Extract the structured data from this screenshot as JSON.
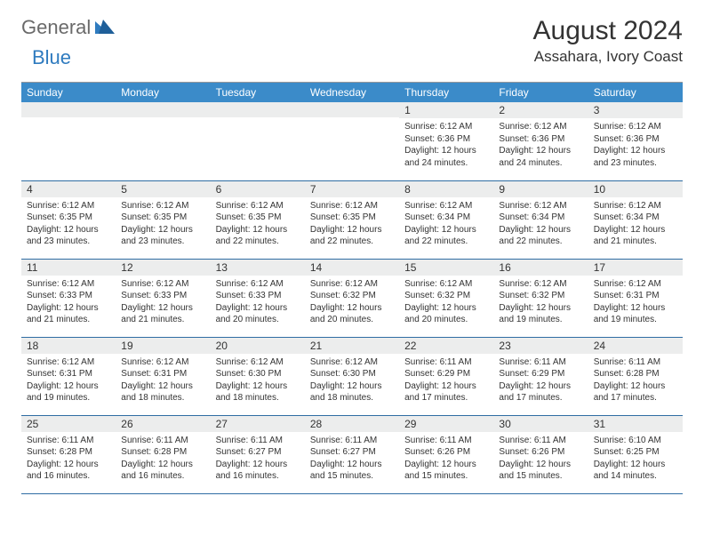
{
  "logo": {
    "text1": "General",
    "text2": "Blue"
  },
  "title": "August 2024",
  "location": "Assahara, Ivory Coast",
  "colors": {
    "header_bg": "#3b8bc9",
    "header_text": "#ffffff",
    "daynum_bg": "#eceded",
    "row_border": "#2f6da3",
    "logo_gray": "#6a6a6a",
    "logo_blue": "#2f7bbf"
  },
  "weekdays": [
    "Sunday",
    "Monday",
    "Tuesday",
    "Wednesday",
    "Thursday",
    "Friday",
    "Saturday"
  ],
  "weeks": [
    [
      {
        "day": "",
        "lines": [
          "",
          "",
          "",
          ""
        ]
      },
      {
        "day": "",
        "lines": [
          "",
          "",
          "",
          ""
        ]
      },
      {
        "day": "",
        "lines": [
          "",
          "",
          "",
          ""
        ]
      },
      {
        "day": "",
        "lines": [
          "",
          "",
          "",
          ""
        ]
      },
      {
        "day": "1",
        "lines": [
          "Sunrise: 6:12 AM",
          "Sunset: 6:36 PM",
          "Daylight: 12 hours",
          "and 24 minutes."
        ]
      },
      {
        "day": "2",
        "lines": [
          "Sunrise: 6:12 AM",
          "Sunset: 6:36 PM",
          "Daylight: 12 hours",
          "and 24 minutes."
        ]
      },
      {
        "day": "3",
        "lines": [
          "Sunrise: 6:12 AM",
          "Sunset: 6:36 PM",
          "Daylight: 12 hours",
          "and 23 minutes."
        ]
      }
    ],
    [
      {
        "day": "4",
        "lines": [
          "Sunrise: 6:12 AM",
          "Sunset: 6:35 PM",
          "Daylight: 12 hours",
          "and 23 minutes."
        ]
      },
      {
        "day": "5",
        "lines": [
          "Sunrise: 6:12 AM",
          "Sunset: 6:35 PM",
          "Daylight: 12 hours",
          "and 23 minutes."
        ]
      },
      {
        "day": "6",
        "lines": [
          "Sunrise: 6:12 AM",
          "Sunset: 6:35 PM",
          "Daylight: 12 hours",
          "and 22 minutes."
        ]
      },
      {
        "day": "7",
        "lines": [
          "Sunrise: 6:12 AM",
          "Sunset: 6:35 PM",
          "Daylight: 12 hours",
          "and 22 minutes."
        ]
      },
      {
        "day": "8",
        "lines": [
          "Sunrise: 6:12 AM",
          "Sunset: 6:34 PM",
          "Daylight: 12 hours",
          "and 22 minutes."
        ]
      },
      {
        "day": "9",
        "lines": [
          "Sunrise: 6:12 AM",
          "Sunset: 6:34 PM",
          "Daylight: 12 hours",
          "and 22 minutes."
        ]
      },
      {
        "day": "10",
        "lines": [
          "Sunrise: 6:12 AM",
          "Sunset: 6:34 PM",
          "Daylight: 12 hours",
          "and 21 minutes."
        ]
      }
    ],
    [
      {
        "day": "11",
        "lines": [
          "Sunrise: 6:12 AM",
          "Sunset: 6:33 PM",
          "Daylight: 12 hours",
          "and 21 minutes."
        ]
      },
      {
        "day": "12",
        "lines": [
          "Sunrise: 6:12 AM",
          "Sunset: 6:33 PM",
          "Daylight: 12 hours",
          "and 21 minutes."
        ]
      },
      {
        "day": "13",
        "lines": [
          "Sunrise: 6:12 AM",
          "Sunset: 6:33 PM",
          "Daylight: 12 hours",
          "and 20 minutes."
        ]
      },
      {
        "day": "14",
        "lines": [
          "Sunrise: 6:12 AM",
          "Sunset: 6:32 PM",
          "Daylight: 12 hours",
          "and 20 minutes."
        ]
      },
      {
        "day": "15",
        "lines": [
          "Sunrise: 6:12 AM",
          "Sunset: 6:32 PM",
          "Daylight: 12 hours",
          "and 20 minutes."
        ]
      },
      {
        "day": "16",
        "lines": [
          "Sunrise: 6:12 AM",
          "Sunset: 6:32 PM",
          "Daylight: 12 hours",
          "and 19 minutes."
        ]
      },
      {
        "day": "17",
        "lines": [
          "Sunrise: 6:12 AM",
          "Sunset: 6:31 PM",
          "Daylight: 12 hours",
          "and 19 minutes."
        ]
      }
    ],
    [
      {
        "day": "18",
        "lines": [
          "Sunrise: 6:12 AM",
          "Sunset: 6:31 PM",
          "Daylight: 12 hours",
          "and 19 minutes."
        ]
      },
      {
        "day": "19",
        "lines": [
          "Sunrise: 6:12 AM",
          "Sunset: 6:31 PM",
          "Daylight: 12 hours",
          "and 18 minutes."
        ]
      },
      {
        "day": "20",
        "lines": [
          "Sunrise: 6:12 AM",
          "Sunset: 6:30 PM",
          "Daylight: 12 hours",
          "and 18 minutes."
        ]
      },
      {
        "day": "21",
        "lines": [
          "Sunrise: 6:12 AM",
          "Sunset: 6:30 PM",
          "Daylight: 12 hours",
          "and 18 minutes."
        ]
      },
      {
        "day": "22",
        "lines": [
          "Sunrise: 6:11 AM",
          "Sunset: 6:29 PM",
          "Daylight: 12 hours",
          "and 17 minutes."
        ]
      },
      {
        "day": "23",
        "lines": [
          "Sunrise: 6:11 AM",
          "Sunset: 6:29 PM",
          "Daylight: 12 hours",
          "and 17 minutes."
        ]
      },
      {
        "day": "24",
        "lines": [
          "Sunrise: 6:11 AM",
          "Sunset: 6:28 PM",
          "Daylight: 12 hours",
          "and 17 minutes."
        ]
      }
    ],
    [
      {
        "day": "25",
        "lines": [
          "Sunrise: 6:11 AM",
          "Sunset: 6:28 PM",
          "Daylight: 12 hours",
          "and 16 minutes."
        ]
      },
      {
        "day": "26",
        "lines": [
          "Sunrise: 6:11 AM",
          "Sunset: 6:28 PM",
          "Daylight: 12 hours",
          "and 16 minutes."
        ]
      },
      {
        "day": "27",
        "lines": [
          "Sunrise: 6:11 AM",
          "Sunset: 6:27 PM",
          "Daylight: 12 hours",
          "and 16 minutes."
        ]
      },
      {
        "day": "28",
        "lines": [
          "Sunrise: 6:11 AM",
          "Sunset: 6:27 PM",
          "Daylight: 12 hours",
          "and 15 minutes."
        ]
      },
      {
        "day": "29",
        "lines": [
          "Sunrise: 6:11 AM",
          "Sunset: 6:26 PM",
          "Daylight: 12 hours",
          "and 15 minutes."
        ]
      },
      {
        "day": "30",
        "lines": [
          "Sunrise: 6:11 AM",
          "Sunset: 6:26 PM",
          "Daylight: 12 hours",
          "and 15 minutes."
        ]
      },
      {
        "day": "31",
        "lines": [
          "Sunrise: 6:10 AM",
          "Sunset: 6:25 PM",
          "Daylight: 12 hours",
          "and 14 minutes."
        ]
      }
    ]
  ]
}
